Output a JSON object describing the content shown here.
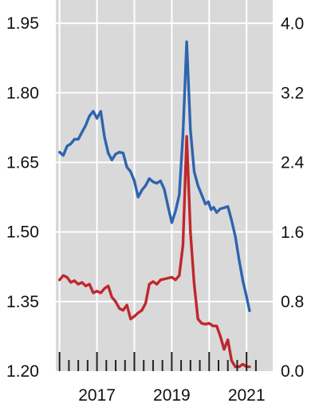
{
  "chart_data": {
    "type": "line",
    "title": "",
    "xlabel": "",
    "ylabel": "",
    "y2label": "",
    "grid": true,
    "background_color": "#d9d9d9",
    "grid_color": "#ffffff",
    "xlim": [
      2015.9,
      2021.7
    ],
    "ylim": [
      1.2,
      2.0
    ],
    "y2lim": [
      0.0,
      4.27
    ],
    "x_ticks": [
      {
        "value": 2017,
        "label": "2017"
      },
      {
        "value": 2019,
        "label": "2019"
      },
      {
        "value": 2021,
        "label": "2021"
      }
    ],
    "x_minor_tick_step": 0.25,
    "x_minor_tick_start": 2016.0,
    "x_minor_tick_end": 2021.25,
    "y_left_ticks": [
      {
        "value": 1.2,
        "label": "1.20"
      },
      {
        "value": 1.35,
        "label": "1.35"
      },
      {
        "value": 1.5,
        "label": "1.50"
      },
      {
        "value": 1.65,
        "label": "1.65"
      },
      {
        "value": 1.8,
        "label": "1.80"
      },
      {
        "value": 1.95,
        "label": "1.95"
      }
    ],
    "y_right_ticks": [
      {
        "value": 0.0,
        "label": "0.0"
      },
      {
        "value": 0.8,
        "label": "0.8"
      },
      {
        "value": 1.6,
        "label": "1.6"
      },
      {
        "value": 2.4,
        "label": "2.4"
      },
      {
        "value": 3.2,
        "label": "3.2"
      },
      {
        "value": 4.0,
        "label": "4.0"
      }
    ],
    "series": [
      {
        "axis": "left",
        "color": "#2e64b0",
        "x": [
          2016.0,
          2016.1,
          2016.2,
          2016.3,
          2016.4,
          2016.5,
          2016.6,
          2016.7,
          2016.8,
          2016.9,
          2017.0,
          2017.1,
          2017.2,
          2017.3,
          2017.4,
          2017.5,
          2017.6,
          2017.7,
          2017.8,
          2017.9,
          2018.0,
          2018.1,
          2018.2,
          2018.3,
          2018.4,
          2018.5,
          2018.6,
          2018.7,
          2018.8,
          2018.9,
          2019.0,
          2019.1,
          2019.2,
          2019.3,
          2019.4,
          2019.5,
          2019.6,
          2019.7,
          2019.8,
          2019.9,
          2019.98,
          2020.05,
          2020.12,
          2020.2,
          2020.3,
          2020.4,
          2020.5,
          2020.6,
          2020.7,
          2020.8,
          2020.9,
          2021.0,
          2021.08
        ],
        "y": [
          1.672,
          1.665,
          1.685,
          1.69,
          1.7,
          1.7,
          1.715,
          1.73,
          1.75,
          1.76,
          1.745,
          1.76,
          1.705,
          1.67,
          1.655,
          1.668,
          1.672,
          1.67,
          1.64,
          1.63,
          1.61,
          1.575,
          1.59,
          1.6,
          1.615,
          1.608,
          1.605,
          1.61,
          1.592,
          1.555,
          1.52,
          1.545,
          1.58,
          1.71,
          1.91,
          1.72,
          1.63,
          1.6,
          1.58,
          1.56,
          1.565,
          1.548,
          1.553,
          1.542,
          1.55,
          1.552,
          1.555,
          1.525,
          1.49,
          1.44,
          1.395,
          1.36,
          1.33
        ]
      },
      {
        "axis": "right",
        "color": "#c0272d",
        "x": [
          2016.0,
          2016.1,
          2016.2,
          2016.3,
          2016.4,
          2016.5,
          2016.6,
          2016.7,
          2016.8,
          2016.9,
          2017.0,
          2017.1,
          2017.2,
          2017.3,
          2017.4,
          2017.5,
          2017.6,
          2017.7,
          2017.8,
          2017.9,
          2018.0,
          2018.1,
          2018.2,
          2018.3,
          2018.4,
          2018.5,
          2018.6,
          2018.7,
          2018.8,
          2018.9,
          2019.0,
          2019.1,
          2019.2,
          2019.3,
          2019.4,
          2019.5,
          2019.6,
          2019.7,
          2019.8,
          2019.9,
          2020.0,
          2020.1,
          2020.2,
          2020.3,
          2020.4,
          2020.5,
          2020.6,
          2020.7,
          2020.8,
          2020.9,
          2021.0,
          2021.08
        ],
        "y": [
          1.05,
          1.1,
          1.08,
          1.02,
          1.04,
          1.0,
          1.02,
          0.98,
          1.0,
          0.9,
          0.92,
          0.9,
          0.95,
          0.98,
          0.85,
          0.8,
          0.72,
          0.7,
          0.76,
          0.6,
          0.63,
          0.67,
          0.7,
          0.78,
          1.0,
          1.03,
          1.0,
          1.05,
          1.06,
          1.07,
          1.08,
          1.05,
          1.1,
          1.45,
          2.7,
          1.6,
          1.0,
          0.6,
          0.55,
          0.54,
          0.55,
          0.52,
          0.52,
          0.4,
          0.25,
          0.36,
          0.12,
          0.05,
          0.05,
          0.08,
          0.05,
          0.05
        ]
      }
    ]
  }
}
